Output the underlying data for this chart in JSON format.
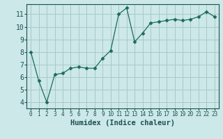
{
  "x": [
    0,
    1,
    2,
    3,
    4,
    5,
    6,
    7,
    8,
    9,
    10,
    11,
    12,
    13,
    14,
    15,
    16,
    17,
    18,
    19,
    20,
    21,
    22,
    23
  ],
  "y": [
    8.0,
    5.7,
    4.0,
    6.2,
    6.3,
    6.7,
    6.8,
    6.7,
    6.7,
    7.5,
    8.1,
    11.0,
    11.5,
    8.8,
    9.5,
    10.3,
    10.4,
    10.5,
    10.6,
    10.5,
    10.6,
    10.8,
    11.2,
    10.8
  ],
  "xlabel": "Humidex (Indice chaleur)",
  "ylim": [
    3.5,
    11.8
  ],
  "xlim": [
    -0.5,
    23.5
  ],
  "yticks": [
    4,
    5,
    6,
    7,
    8,
    9,
    10,
    11
  ],
  "xticks": [
    0,
    1,
    2,
    3,
    4,
    5,
    6,
    7,
    8,
    9,
    10,
    11,
    12,
    13,
    14,
    15,
    16,
    17,
    18,
    19,
    20,
    21,
    22,
    23
  ],
  "line_color": "#1a6b5a",
  "marker": "D",
  "marker_size": 2.5,
  "bg_color": "#cce8e8",
  "grid_color": "#aac8c8",
  "xlabel_fontsize": 7.5,
  "tick_fontsize_x": 5.5,
  "tick_fontsize_y": 7
}
